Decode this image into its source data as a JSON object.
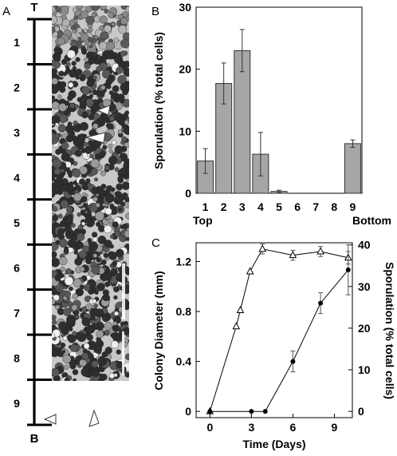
{
  "panels": {
    "a": {
      "letter": "A",
      "top_label": "T",
      "bottom_label": "B",
      "segments": [
        "1",
        "2",
        "3",
        "4",
        "5",
        "6",
        "7",
        "8",
        "9"
      ]
    },
    "b": {
      "letter": "B"
    },
    "c": {
      "letter": "C"
    }
  },
  "chart_data": [
    {
      "type": "bar",
      "panel": "B",
      "categories": [
        "1",
        "2",
        "3",
        "4",
        "5",
        "6",
        "7",
        "8",
        "9"
      ],
      "values": [
        5.2,
        17.7,
        23.0,
        6.3,
        0.3,
        0,
        0,
        0,
        8.0
      ],
      "errors": [
        2.0,
        3.3,
        3.4,
        3.5,
        0.2,
        0,
        0,
        0,
        0.6
      ],
      "ylabel": "Sporulation (% total cells)",
      "ylim": [
        0,
        30
      ],
      "yticks": [
        "0",
        "10",
        "20",
        "30"
      ],
      "xlabels_below": {
        "left": "Top",
        "right": "Bottom"
      },
      "bar_color": "#a6a6a6",
      "grid": false
    },
    {
      "type": "line",
      "panel": "C",
      "xlabel": "Time (Days)",
      "xlim": [
        -1,
        10.3
      ],
      "xticks": [
        "0",
        "3",
        "6",
        "9"
      ],
      "ylabel": "Colony Diameter (mm)",
      "ylim": [
        -0.05,
        1.35
      ],
      "yticks": [
        "0",
        "0.4",
        "0.8",
        "1.2"
      ],
      "ylabel_right": "Sporulation (% total cells)",
      "ylim_right": [
        -1.5,
        40.5
      ],
      "yticks_right": [
        "0",
        "10",
        "20",
        "30",
        "40"
      ],
      "grid": false,
      "series": [
        {
          "marker": "open-triangle",
          "axis": "left",
          "x": [
            0,
            1.9,
            2.2,
            2.9,
            3.8,
            6.0,
            8.0,
            10.0
          ],
          "y": [
            0.0,
            0.68,
            0.81,
            1.12,
            1.3,
            1.25,
            1.28,
            1.23
          ],
          "err": [
            0,
            0,
            0,
            0,
            0.04,
            0.04,
            0.04,
            0.05
          ]
        },
        {
          "marker": "filled-circle",
          "axis": "right",
          "x": [
            0,
            3.0,
            4.0,
            6.0,
            8.0,
            10.0
          ],
          "y": [
            0.0,
            0.0,
            0.0,
            12.0,
            26.0,
            34.0
          ],
          "err": [
            0,
            0,
            0,
            2.5,
            2.5,
            6.0
          ]
        }
      ]
    }
  ]
}
